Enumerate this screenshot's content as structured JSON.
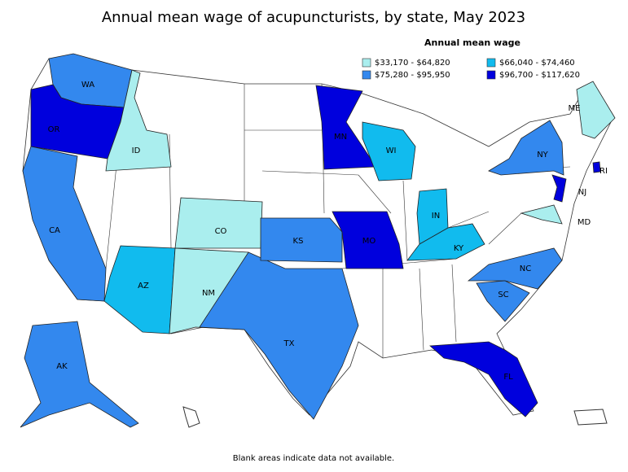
{
  "title": "Annual mean wage of acupuncturists, by state, May 2023",
  "legend": {
    "title": "Annual mean wage",
    "items": [
      {
        "label": "$33,170 - $64,820",
        "color": "#aaeeee"
      },
      {
        "label": "$66,040 - $74,460",
        "color": "#11bbee"
      },
      {
        "label": "$75,280 - $95,950",
        "color": "#3388ee"
      },
      {
        "label": "$96,700 - $117,620",
        "color": "#0000dd"
      }
    ]
  },
  "states": [
    {
      "label": "WA",
      "bin": 2
    },
    {
      "label": "OR",
      "bin": 3
    },
    {
      "label": "ID",
      "bin": 0
    },
    {
      "label": "CA",
      "bin": 2
    },
    {
      "label": "AK",
      "bin": 2
    },
    {
      "label": "AZ",
      "bin": 1
    },
    {
      "label": "CO",
      "bin": 0
    },
    {
      "label": "NM",
      "bin": 0
    },
    {
      "label": "TX",
      "bin": 2
    },
    {
      "label": "KS",
      "bin": 2
    },
    {
      "label": "MN",
      "bin": 3
    },
    {
      "label": "WI",
      "bin": 1
    },
    {
      "label": "MO",
      "bin": 3
    },
    {
      "label": "IN",
      "bin": 1
    },
    {
      "label": "KY",
      "bin": 1
    },
    {
      "label": "NC",
      "bin": 2
    },
    {
      "label": "SC",
      "bin": 2
    },
    {
      "label": "FL",
      "bin": 3
    },
    {
      "label": "NY",
      "bin": 2
    },
    {
      "label": "NJ",
      "bin": 3
    },
    {
      "label": "MD",
      "bin": 0
    },
    {
      "label": "ME",
      "bin": 0
    },
    {
      "label": "RI",
      "bin": 3
    }
  ],
  "footnote": "Blank areas indicate data not available."
}
